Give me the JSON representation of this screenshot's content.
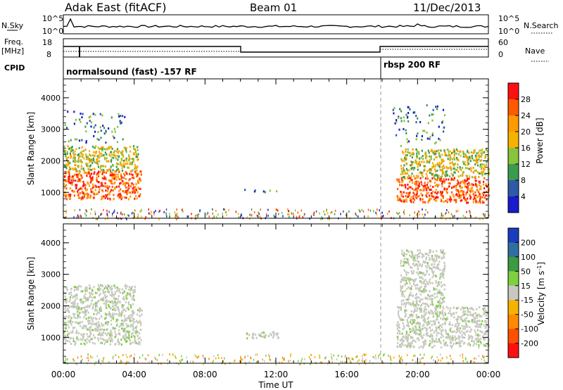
{
  "header": {
    "station": "Adak East (fitACF)",
    "beam": "Beam 01",
    "date": "11/Dec/2013"
  },
  "top_panels": {
    "nsky_label": "N.Sky",
    "nsearch_label": "N.Search",
    "nsky_ticks": [
      "10^5",
      "10^0"
    ],
    "nsearch_ticks": [
      "10^5",
      "10^0"
    ],
    "freq_label": "Freq.",
    "freq_unit": "[MHz]",
    "freq_ticks": [
      "18",
      "8"
    ],
    "nave_label": "Nave",
    "nave_ticks": [
      "60",
      "0"
    ],
    "cpid_label": "CPID",
    "cpid_segments": [
      {
        "text": "normalsound (fast) -157 RF",
        "start_hour": 0
      },
      {
        "text": "rbsp 200 RF",
        "start_hour": 18
      }
    ]
  },
  "chart_data": [
    {
      "type": "heatmap",
      "title": "",
      "parameter": "Power",
      "colorbar_label": "Power [dB]",
      "colorbar_ticks": [
        "28",
        "24",
        "20",
        "16",
        "12",
        "8",
        "4"
      ],
      "colorbar_colors": [
        "#ff1010",
        "#ff5a00",
        "#ff9a00",
        "#f5b300",
        "#88c43c",
        "#3c9a50",
        "#2e5aa8",
        "#1a1ad0"
      ],
      "xlabel": "",
      "ylabel": "Slant Range [km]",
      "xlim": [
        0,
        24
      ],
      "ylim": [
        180,
        4600
      ],
      "y_ticks": [
        1000,
        2000,
        3000,
        4000
      ],
      "x_ticks": [
        "00:00",
        "04:00",
        "08:00",
        "12:00",
        "16:00",
        "20:00",
        "00:00"
      ],
      "regions": [
        {
          "t": [
            0,
            4.4
          ],
          "r": [
            800,
            1700
          ],
          "level": "strong"
        },
        {
          "t": [
            0,
            4.2
          ],
          "r": [
            1700,
            2500
          ],
          "level": "medium"
        },
        {
          "t": [
            0,
            3.5
          ],
          "r": [
            2600,
            3600
          ],
          "level": "weak"
        },
        {
          "t": [
            10.2,
            12.2
          ],
          "r": [
            1000,
            1200
          ],
          "level": "weak"
        },
        {
          "t": [
            18.8,
            24
          ],
          "r": [
            700,
            1500
          ],
          "level": "strong"
        },
        {
          "t": [
            19.0,
            24
          ],
          "r": [
            1500,
            2400
          ],
          "level": "medium"
        },
        {
          "t": [
            18.5,
            21.5
          ],
          "r": [
            2500,
            3800
          ],
          "level": "weak"
        },
        {
          "t": [
            0,
            24
          ],
          "r": [
            180,
            500
          ],
          "level": "noise"
        }
      ]
    },
    {
      "type": "heatmap",
      "title": "",
      "parameter": "Velocity",
      "colorbar_label": "Velocity [m s^-1]",
      "colorbar_ticks": [
        "200",
        "100",
        "50",
        "15",
        "-15",
        "-50",
        "-100",
        "-200"
      ],
      "colorbar_colors": [
        "#1a3cc0",
        "#2f6fa0",
        "#3c9a40",
        "#7ed040",
        "#c8c8c0",
        "#f5b300",
        "#ff8a00",
        "#ff5000",
        "#ff1010"
      ],
      "xlabel": "Time UT",
      "ylabel": "Slant Range [km]",
      "xlim": [
        0,
        24
      ],
      "ylim": [
        180,
        4600
      ],
      "y_ticks": [
        1000,
        2000,
        3000,
        4000
      ],
      "x_ticks": [
        "00:00",
        "04:00",
        "08:00",
        "12:00",
        "16:00",
        "20:00",
        "00:00"
      ],
      "regions": [
        {
          "t": [
            0,
            4.4
          ],
          "r": [
            800,
            2000
          ],
          "level": "ground"
        },
        {
          "t": [
            0,
            4.0
          ],
          "r": [
            2000,
            2700
          ],
          "level": "ground"
        },
        {
          "t": [
            10.2,
            12.2
          ],
          "r": [
            1000,
            1200
          ],
          "level": "ground"
        },
        {
          "t": [
            18.8,
            24
          ],
          "r": [
            700,
            2000
          ],
          "level": "ground"
        },
        {
          "t": [
            19.0,
            21.5
          ],
          "r": [
            2000,
            3800
          ],
          "level": "ground"
        },
        {
          "t": [
            0,
            24
          ],
          "r": [
            180,
            500
          ],
          "level": "noise"
        }
      ]
    }
  ]
}
